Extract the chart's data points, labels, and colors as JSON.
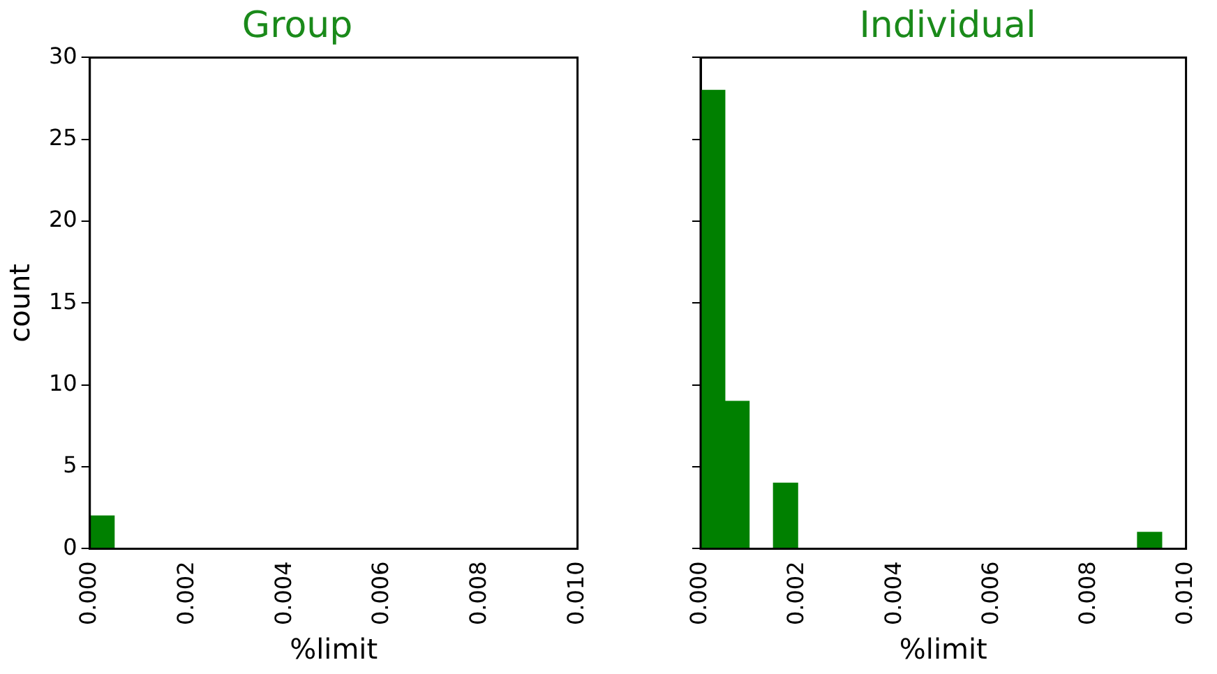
{
  "chart_data": [
    {
      "type": "histogram",
      "title": "Group",
      "xlabel": "%limit",
      "ylabel": "count",
      "bins": [
        0,
        0.0005
      ],
      "values": [
        2
      ],
      "color": "#008000",
      "xlim": [
        0,
        0.01
      ],
      "xticks": [
        {
          "value": 0,
          "label": "0.000"
        },
        {
          "value": 0.002,
          "label": "0.002"
        },
        {
          "value": 0.004,
          "label": "0.004"
        },
        {
          "value": 0.006,
          "label": "0.006"
        },
        {
          "value": 0.008,
          "label": "0.008"
        },
        {
          "value": 0.01,
          "label": "0.010"
        }
      ],
      "ylim": [
        0,
        30
      ],
      "yticks": [
        0,
        5,
        10,
        15,
        20,
        25,
        30
      ],
      "grid": false,
      "legend": false
    },
    {
      "type": "histogram",
      "title": "Individual",
      "xlabel": "%limit",
      "bins": [
        0,
        0.0005,
        0.001,
        0.0015,
        0.002,
        0.0025,
        0.003,
        0.0035,
        0.004,
        0.0045,
        0.005,
        0.0055,
        0.006,
        0.0065,
        0.007,
        0.0075,
        0.008,
        0.0085,
        0.009,
        0.0095
      ],
      "values": [
        28,
        9,
        0,
        4,
        0,
        0,
        0,
        0,
        0,
        0,
        0,
        0,
        0,
        0,
        0,
        0,
        0,
        0,
        1
      ],
      "color": "#008000",
      "xlim": [
        0,
        0.01
      ],
      "xticks": [
        {
          "value": 0,
          "label": "0.000"
        },
        {
          "value": 0.002,
          "label": "0.002"
        },
        {
          "value": 0.004,
          "label": "0.004"
        },
        {
          "value": 0.006,
          "label": "0.006"
        },
        {
          "value": 0.008,
          "label": "0.008"
        },
        {
          "value": 0.01,
          "label": "0.010"
        }
      ],
      "ylim": [
        0,
        30
      ],
      "yticks": [
        0,
        5,
        10,
        15,
        20,
        25,
        30
      ],
      "grid": false,
      "legend": false,
      "tick_labels": "x"
    }
  ]
}
